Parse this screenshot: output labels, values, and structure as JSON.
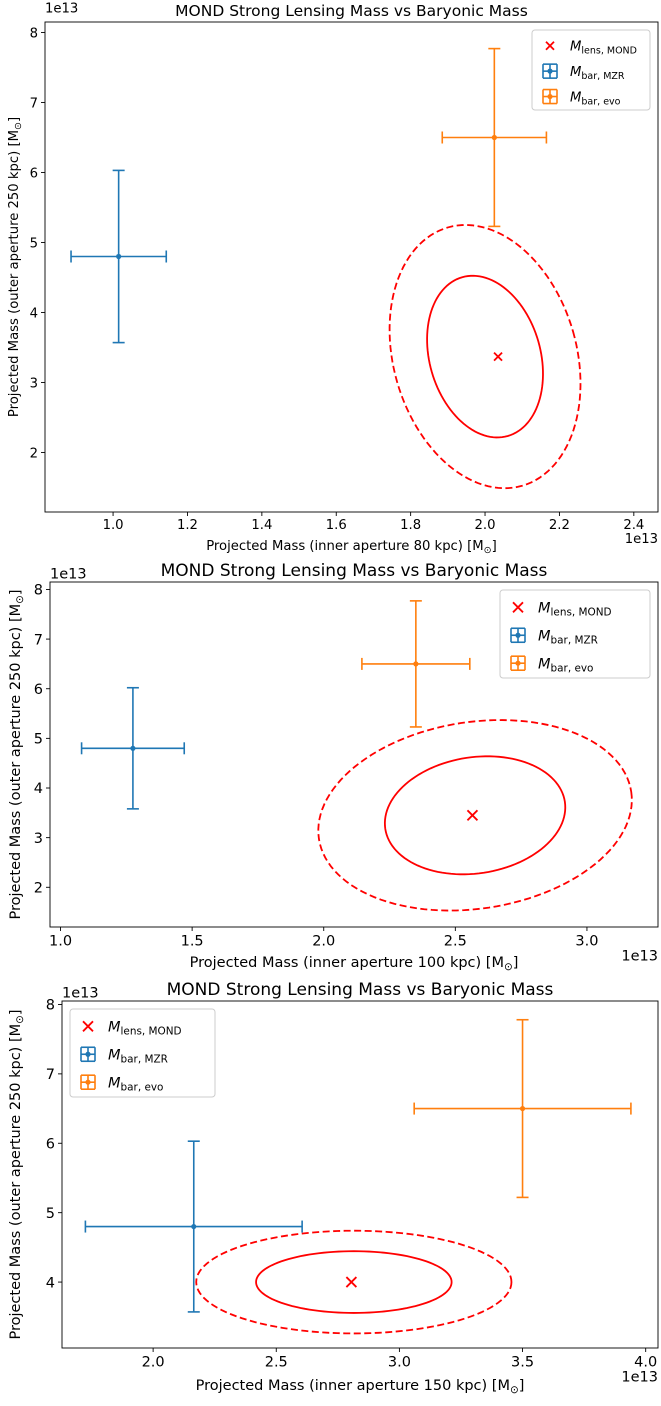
{
  "colors": {
    "lens": "#ff0000",
    "mzr": "#1f77b4",
    "evo": "#ff7f0e"
  },
  "chart_data": [
    {
      "type": "scatter",
      "title": "MOND Strong Lensing Mass vs Baryonic Mass",
      "xlabel": "Projected Mass (inner aperture 80 kpc) [M",
      "ylabel": "Projected Mass (outer aperture 250 kpc) [M",
      "x_exponent": "1e13",
      "y_exponent": "1e13",
      "xlim": [
        0.817,
        2.465
      ],
      "ylim": [
        1.15,
        8.15
      ],
      "xticks": [
        1.0,
        1.2,
        1.4,
        1.6,
        1.8,
        2.0,
        2.2,
        2.4
      ],
      "xtick_labels": [
        "1.0",
        "1.2",
        "1.4",
        "1.6",
        "1.8",
        "2.0",
        "2.2",
        "2.4"
      ],
      "yticks": [
        2,
        3,
        4,
        5,
        6,
        7,
        8
      ],
      "ytick_labels": [
        "2",
        "3",
        "4",
        "5",
        "6",
        "7",
        "8"
      ],
      "legend_position": "top-right",
      "legend": [
        {
          "key": "lens",
          "main": "M",
          "sub": "lens, MOND"
        },
        {
          "key": "mzr",
          "main": "M",
          "sub": "bar, MZR"
        },
        {
          "key": "evo",
          "main": "M",
          "sub": "bar, evo"
        }
      ],
      "lens_point": {
        "x": 2.035,
        "y": 3.37
      },
      "bar_points": [
        {
          "key": "mzr",
          "x": 1.015,
          "y": 4.8,
          "xerr": 0.128,
          "yerr": 1.23
        },
        {
          "key": "evo",
          "x": 2.025,
          "y": 6.5,
          "xerr": 0.14,
          "yerr": 1.27
        }
      ],
      "contours": [
        {
          "cx": 2.0,
          "cy": 3.37,
          "rx": 0.149,
          "ry": 1.18,
          "tilt": -0.28,
          "dashed": false
        },
        {
          "cx": 2.0,
          "cy": 3.37,
          "rx": 0.246,
          "ry": 1.92,
          "tilt": -0.28,
          "dashed": true
        }
      ]
    },
    {
      "type": "scatter",
      "title": "MOND Strong Lensing Mass vs Baryonic Mass",
      "xlabel": "Projected Mass (inner aperture 100 kpc) [M",
      "ylabel": "Projected Mass (outer aperture 250 kpc) [M",
      "x_exponent": "1e13",
      "y_exponent": "1e13",
      "xlim": [
        0.96,
        3.27
      ],
      "ylim": [
        1.2,
        8.15
      ],
      "xticks": [
        1.0,
        1.5,
        2.0,
        2.5,
        3.0
      ],
      "xtick_labels": [
        "1.0",
        "1.5",
        "2.0",
        "2.5",
        "3.0"
      ],
      "yticks": [
        2,
        3,
        4,
        5,
        6,
        7,
        8
      ],
      "ytick_labels": [
        "2",
        "3",
        "4",
        "5",
        "6",
        "7",
        "8"
      ],
      "legend_position": "top-right",
      "legend": [
        {
          "key": "lens",
          "main": "M",
          "sub": "lens, MOND"
        },
        {
          "key": "mzr",
          "main": "M",
          "sub": "bar, MZR"
        },
        {
          "key": "evo",
          "main": "M",
          "sub": "bar, evo"
        }
      ],
      "lens_point": {
        "x": 2.565,
        "y": 3.45
      },
      "bar_points": [
        {
          "key": "mzr",
          "x": 1.275,
          "y": 4.8,
          "xerr": 0.195,
          "yerr": 1.22
        },
        {
          "key": "evo",
          "x": 2.35,
          "y": 6.5,
          "xerr": 0.205,
          "yerr": 1.27
        }
      ],
      "contours": [
        {
          "cx": 2.575,
          "cy": 3.45,
          "rx": 0.345,
          "ry": 1.17,
          "tilt": -0.15,
          "dashed": false
        },
        {
          "cx": 2.575,
          "cy": 3.45,
          "rx": 0.6,
          "ry": 1.88,
          "tilt": -0.15,
          "dashed": true
        }
      ]
    },
    {
      "type": "scatter",
      "title": "MOND Strong Lensing Mass vs Baryonic Mass",
      "xlabel": "Projected Mass (inner aperture 150 kpc) [M",
      "ylabel": "Projected Mass (outer aperture 250 kpc) [M",
      "x_exponent": "1e13",
      "y_exponent": "1e13",
      "xlim": [
        1.63,
        4.05
      ],
      "ylim": [
        3.05,
        8.05
      ],
      "xticks": [
        2.0,
        2.5,
        3.0,
        3.5,
        4.0
      ],
      "xtick_labels": [
        "2.0",
        "2.5",
        "3.0",
        "3.5",
        "4.0"
      ],
      "yticks": [
        4,
        5,
        6,
        7,
        8
      ],
      "ytick_labels": [
        "4",
        "5",
        "6",
        "7",
        "8"
      ],
      "legend_position": "top-left",
      "legend": [
        {
          "key": "lens",
          "main": "M",
          "sub": "lens, MOND"
        },
        {
          "key": "mzr",
          "main": "M",
          "sub": "bar, MZR"
        },
        {
          "key": "evo",
          "main": "M",
          "sub": "bar, evo"
        }
      ],
      "lens_point": {
        "x": 2.805,
        "y": 4.0
      },
      "bar_points": [
        {
          "key": "mzr",
          "x": 2.165,
          "y": 4.8,
          "xerr": 0.44,
          "yerr": 1.23
        },
        {
          "key": "evo",
          "x": 3.5,
          "y": 6.5,
          "xerr": 0.44,
          "yerr": 1.28
        }
      ],
      "contours": [
        {
          "cx": 2.815,
          "cy": 4.0,
          "rx": 0.397,
          "ry": 0.445,
          "tilt": 0.0,
          "dashed": false
        },
        {
          "cx": 2.815,
          "cy": 4.0,
          "rx": 0.64,
          "ry": 0.74,
          "tilt": 0.0,
          "dashed": true
        }
      ]
    }
  ]
}
